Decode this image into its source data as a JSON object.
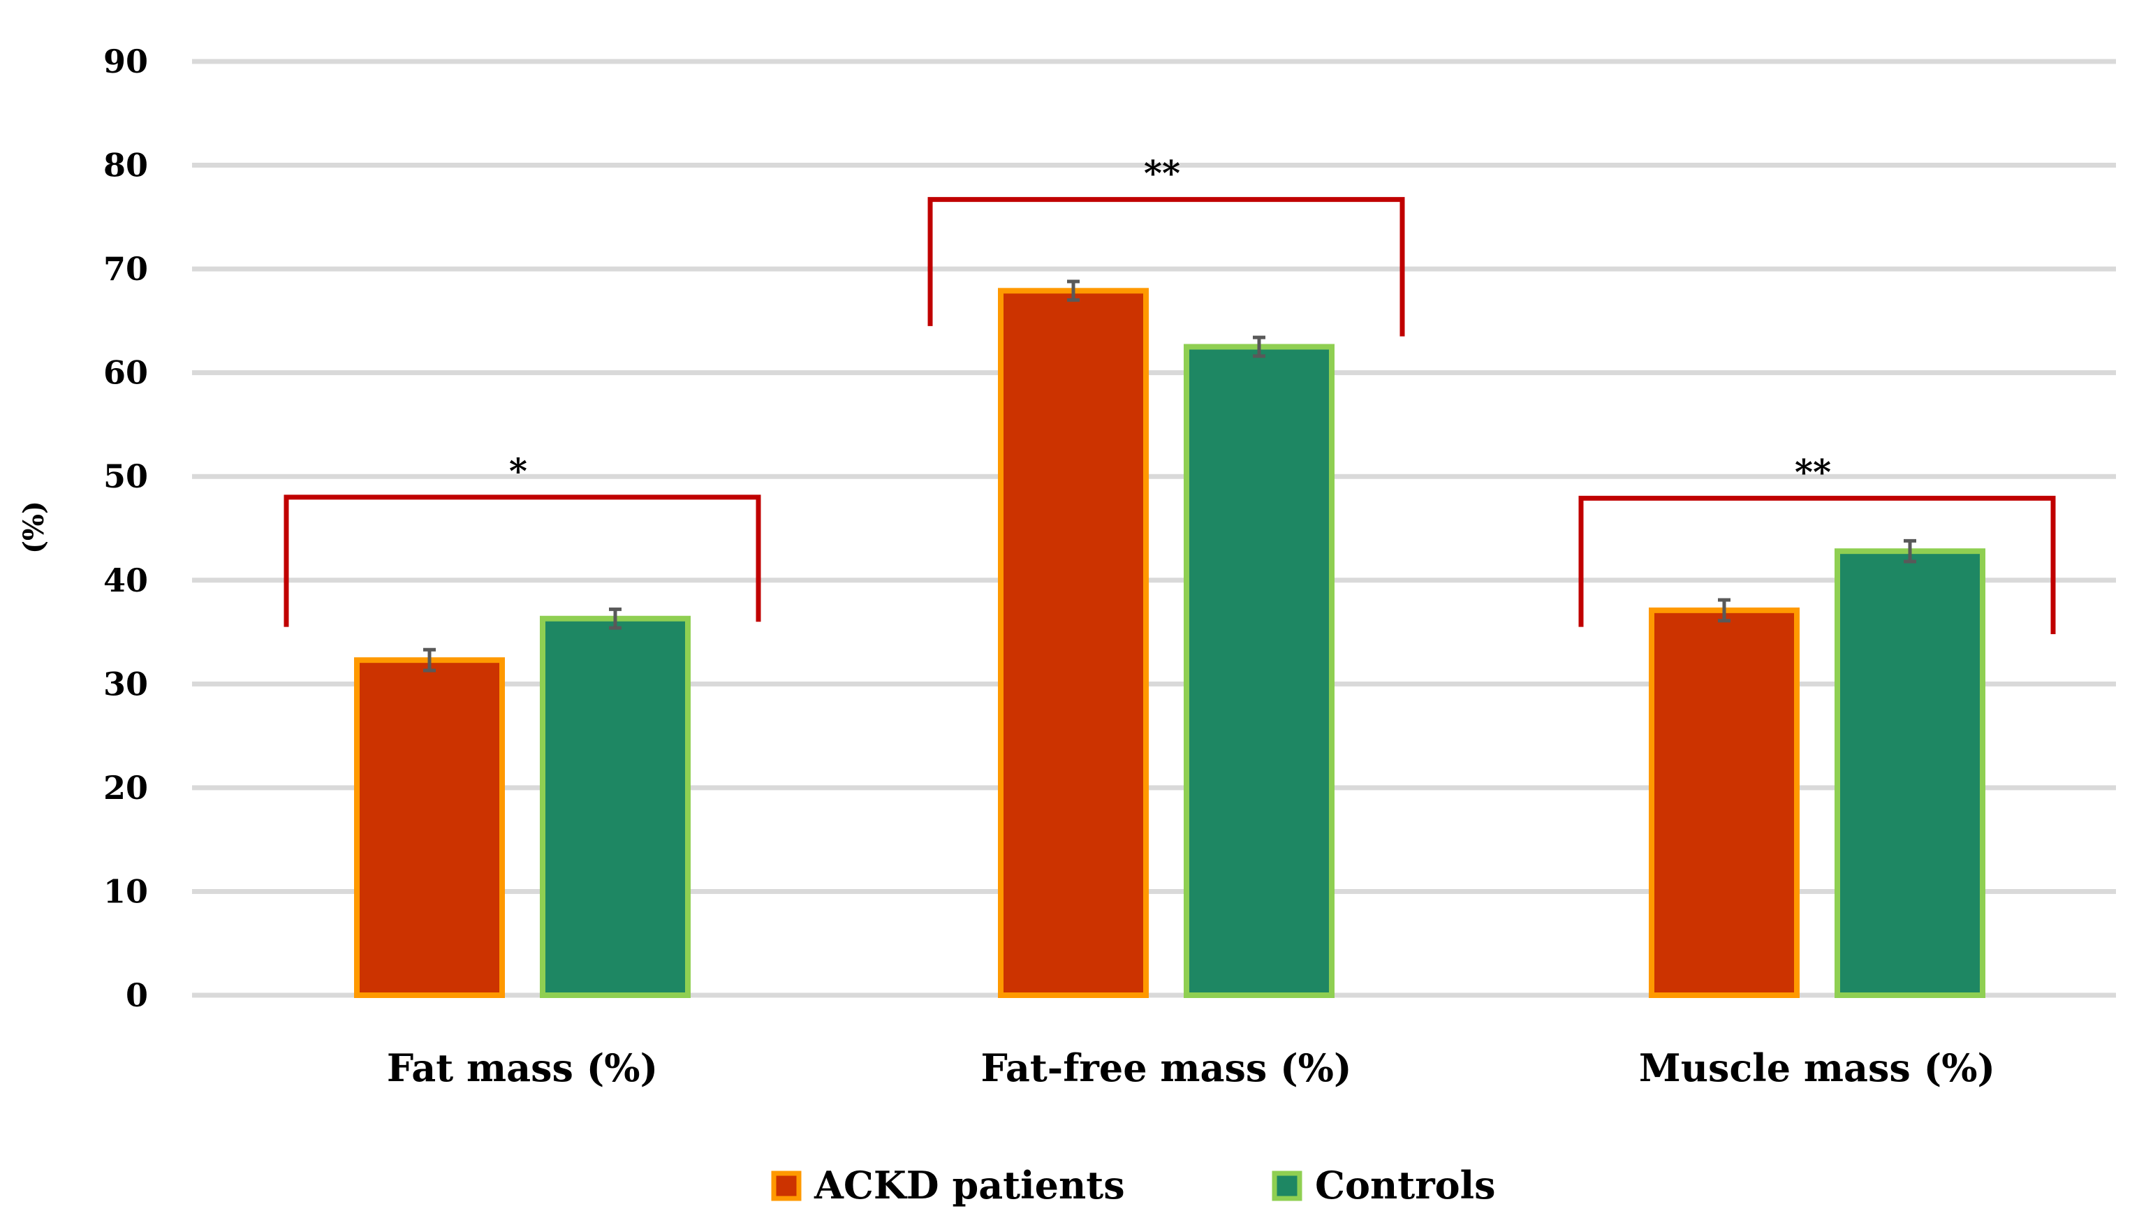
{
  "chart_data": {
    "type": "bar",
    "title": "",
    "xlabel": "",
    "ylabel": "(%)",
    "ylim": [
      0,
      90
    ],
    "yticks": [
      0,
      10,
      20,
      30,
      40,
      50,
      60,
      70,
      80,
      90
    ],
    "grid": true,
    "legend_position": "bottom-center",
    "categories": [
      "Fat mass (%)",
      "Fat-free mass (%)",
      "Muscle mass (%)"
    ],
    "series": [
      {
        "name": "ACKD patients",
        "values": [
          32.3,
          67.9,
          37.1
        ],
        "errors": [
          1.0,
          0.9,
          1.0
        ],
        "fill": "#cc3300",
        "edge": "#ff9900"
      },
      {
        "name": "Controls",
        "values": [
          36.3,
          62.5,
          42.8
        ],
        "errors": [
          0.9,
          0.9,
          1.0
        ],
        "fill": "#1e8763",
        "edge": "#8fcf52"
      }
    ],
    "significance": [
      {
        "category_index": 0,
        "label": "*",
        "bracket_level": 48,
        "left_leg_bottom": 35.5,
        "right_leg_bottom": 36
      },
      {
        "category_index": 1,
        "label": "**",
        "bracket_level": 76.7,
        "left_leg_bottom": 64.5,
        "right_leg_bottom": 63.5
      },
      {
        "category_index": 2,
        "label": "**",
        "bracket_level": 47.9,
        "left_leg_bottom": 35.5,
        "right_leg_bottom": 34.8
      }
    ],
    "colors": {
      "grid": "#d9d9d9",
      "bracket": "#c00000",
      "error_bar": "#595959"
    }
  }
}
